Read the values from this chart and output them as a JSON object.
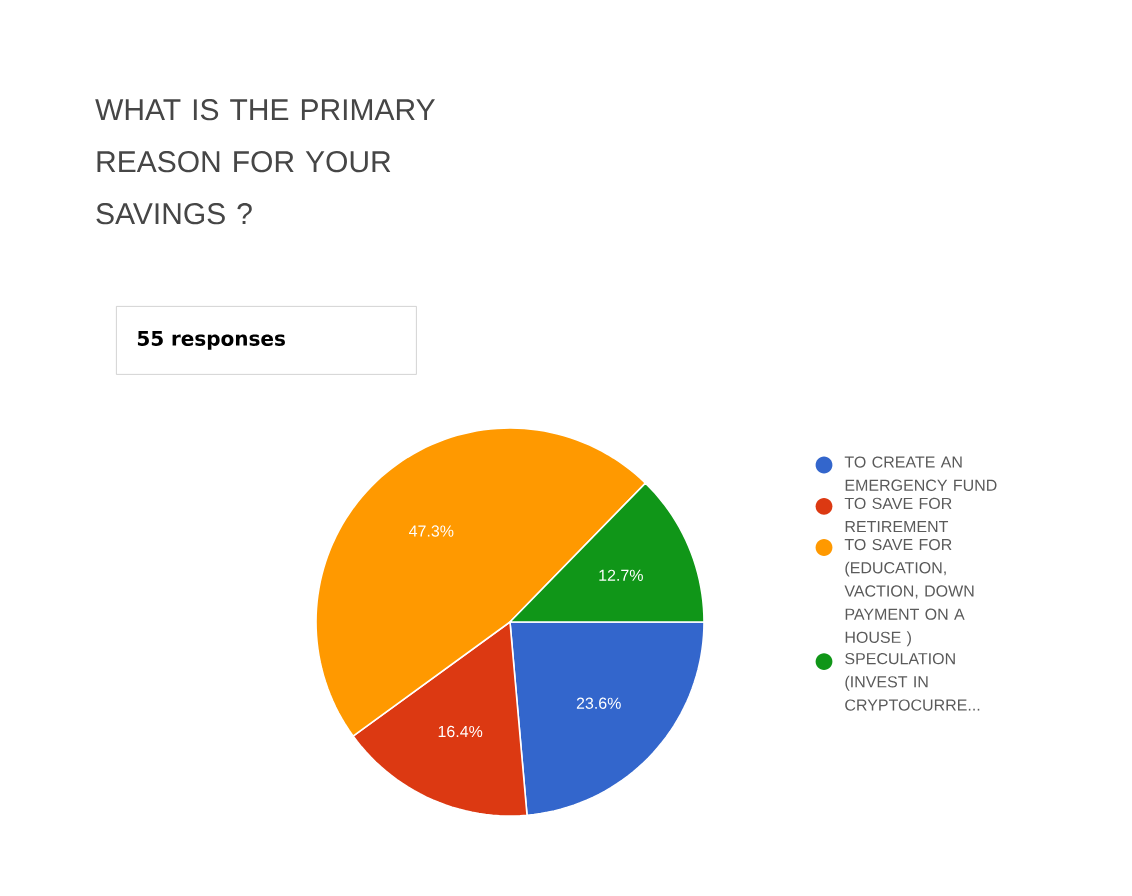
{
  "chart_data": {
    "type": "pie",
    "title": "WHAT IS THE PRIMARY REASON FOR YOUR SAVINGS ?",
    "subtitle": "55 responses",
    "categories": [
      "TO CREATE AN EMERGENCY FUND",
      "TO SAVE FOR RETIREMENT",
      "TO SAVE FOR (EDUCATION, VACTION, DOWN PAYMENT ON A HOUSE )",
      "SPECULATION (INVEST IN CRYPTOCURRE..."
    ],
    "values": [
      23.6,
      16.4,
      47.3,
      12.7
    ],
    "value_labels": [
      "23.6%",
      "16.4%",
      "47.3%",
      "12.7%"
    ],
    "colors": [
      "#3366cc",
      "#dc3912",
      "#ff9900",
      "#109618"
    ],
    "legend": "right"
  }
}
